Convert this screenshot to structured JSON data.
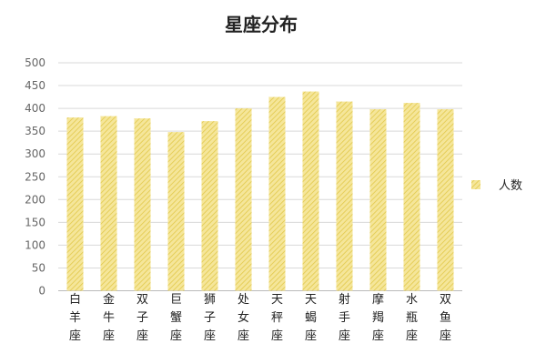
{
  "chart_data": {
    "type": "bar",
    "title": "星座分布",
    "xlabel": "",
    "ylabel": "",
    "categories": [
      "白羊座",
      "金牛座",
      "双子座",
      "巨蟹座",
      "狮子座",
      "处女座",
      "天秤座",
      "天蝎座",
      "射手座",
      "摩羯座",
      "水瓶座",
      "双鱼座"
    ],
    "series": [
      {
        "name": "人数",
        "values": [
          380,
          383,
          378,
          348,
          372,
          400,
          425,
          437,
          415,
          398,
          412,
          398
        ],
        "color": "#f0dc78"
      }
    ],
    "ylim": [
      0,
      500
    ],
    "yticks": [
      0,
      50,
      100,
      150,
      200,
      250,
      300,
      350,
      400,
      450,
      500
    ],
    "grid": true,
    "legend_position": "right",
    "bar_pattern": "diagonal-hatch"
  }
}
